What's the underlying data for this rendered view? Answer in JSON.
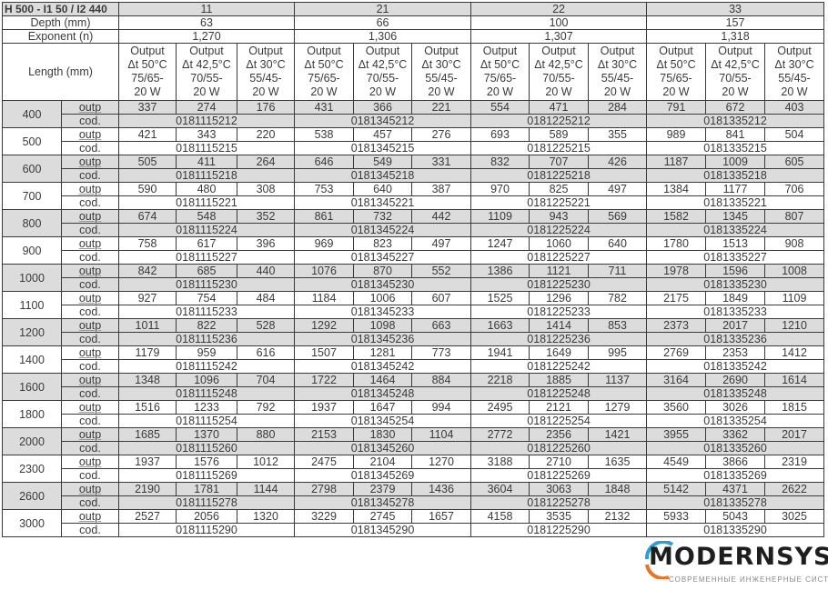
{
  "table": {
    "title": "H 500 - I1 50 / I2 440",
    "types": [
      "11",
      "21",
      "22",
      "33"
    ],
    "depth_label": "Depth (mm)",
    "depths": [
      "63",
      "66",
      "100",
      "157"
    ],
    "exponent_label": "Exponent (n)",
    "exponents": [
      "1,270",
      "1,306",
      "1,307",
      "1,318"
    ],
    "length_label": "Length (mm)",
    "output_headers": [
      [
        "Output",
        "Δt 50°C",
        "75/65-",
        "20 W"
      ],
      [
        "Output",
        "Δt 42,5°C",
        "70/55-",
        "20 W"
      ],
      [
        "Output",
        "Δt 30°C",
        "55/45-",
        "20 W"
      ]
    ],
    "outp_label": "outp",
    "cod_label": "cod.",
    "rows": [
      {
        "length": "400",
        "outp": [
          [
            "337",
            "274",
            "176"
          ],
          [
            "431",
            "366",
            "221"
          ],
          [
            "554",
            "471",
            "284"
          ],
          [
            "791",
            "672",
            "403"
          ]
        ],
        "cod": [
          "0181115212",
          "0181345212",
          "0181225212",
          "0181335212"
        ]
      },
      {
        "length": "500",
        "outp": [
          [
            "421",
            "343",
            "220"
          ],
          [
            "538",
            "457",
            "276"
          ],
          [
            "693",
            "589",
            "355"
          ],
          [
            "989",
            "841",
            "504"
          ]
        ],
        "cod": [
          "0181115215",
          "0181345215",
          "0181225215",
          "0181335215"
        ]
      },
      {
        "length": "600",
        "outp": [
          [
            "505",
            "411",
            "264"
          ],
          [
            "646",
            "549",
            "331"
          ],
          [
            "832",
            "707",
            "426"
          ],
          [
            "1187",
            "1009",
            "605"
          ]
        ],
        "cod": [
          "0181115218",
          "0181345218",
          "0181225218",
          "0181335218"
        ]
      },
      {
        "length": "700",
        "outp": [
          [
            "590",
            "480",
            "308"
          ],
          [
            "753",
            "640",
            "387"
          ],
          [
            "970",
            "825",
            "497"
          ],
          [
            "1384",
            "1177",
            "706"
          ]
        ],
        "cod": [
          "0181115221",
          "0181345221",
          "0181225221",
          "0181335221"
        ]
      },
      {
        "length": "800",
        "outp": [
          [
            "674",
            "548",
            "352"
          ],
          [
            "861",
            "732",
            "442"
          ],
          [
            "1109",
            "943",
            "569"
          ],
          [
            "1582",
            "1345",
            "807"
          ]
        ],
        "cod": [
          "0181115224",
          "0181345224",
          "0181225224",
          "0181335224"
        ]
      },
      {
        "length": "900",
        "outp": [
          [
            "758",
            "617",
            "396"
          ],
          [
            "969",
            "823",
            "497"
          ],
          [
            "1247",
            "1060",
            "640"
          ],
          [
            "1780",
            "1513",
            "908"
          ]
        ],
        "cod": [
          "0181115227",
          "0181345227",
          "0181225227",
          "0181335227"
        ]
      },
      {
        "length": "1000",
        "outp": [
          [
            "842",
            "685",
            "440"
          ],
          [
            "1076",
            "870",
            "552"
          ],
          [
            "1386",
            "1121",
            "711"
          ],
          [
            "1978",
            "1596",
            "1008"
          ]
        ],
        "cod": [
          "0181115230",
          "0181345230",
          "0181225230",
          "0181335230"
        ]
      },
      {
        "length": "1100",
        "outp": [
          [
            "927",
            "754",
            "484"
          ],
          [
            "1184",
            "1006",
            "607"
          ],
          [
            "1525",
            "1296",
            "782"
          ],
          [
            "2175",
            "1849",
            "1109"
          ]
        ],
        "cod": [
          "0181115233",
          "0181345233",
          "0181225233",
          "0181335233"
        ]
      },
      {
        "length": "1200",
        "outp": [
          [
            "1011",
            "822",
            "528"
          ],
          [
            "1292",
            "1098",
            "663"
          ],
          [
            "1663",
            "1414",
            "853"
          ],
          [
            "2373",
            "2017",
            "1210"
          ]
        ],
        "cod": [
          "0181115236",
          "0181345236",
          "0181225236",
          "0181335236"
        ]
      },
      {
        "length": "1400",
        "outp": [
          [
            "1179",
            "959",
            "616"
          ],
          [
            "1507",
            "1281",
            "773"
          ],
          [
            "1941",
            "1649",
            "995"
          ],
          [
            "2769",
            "2353",
            "1412"
          ]
        ],
        "cod": [
          "0181115242",
          "0181345242",
          "0181225242",
          "0181335242"
        ]
      },
      {
        "length": "1600",
        "outp": [
          [
            "1348",
            "1096",
            "704"
          ],
          [
            "1722",
            "1464",
            "884"
          ],
          [
            "2218",
            "1885",
            "1137"
          ],
          [
            "3164",
            "2690",
            "1614"
          ]
        ],
        "cod": [
          "0181115248",
          "0181345248",
          "0181225248",
          "0181335248"
        ]
      },
      {
        "length": "1800",
        "outp": [
          [
            "1516",
            "1233",
            "792"
          ],
          [
            "1937",
            "1647",
            "994"
          ],
          [
            "2495",
            "2121",
            "1279"
          ],
          [
            "3560",
            "3026",
            "1815"
          ]
        ],
        "cod": [
          "0181115254",
          "0181345254",
          "0181225254",
          "0181335254"
        ]
      },
      {
        "length": "2000",
        "outp": [
          [
            "1685",
            "1370",
            "880"
          ],
          [
            "2153",
            "1830",
            "1104"
          ],
          [
            "2772",
            "2356",
            "1421"
          ],
          [
            "3955",
            "3362",
            "2017"
          ]
        ],
        "cod": [
          "0181115260",
          "0181345260",
          "0181225260",
          "0181335260"
        ]
      },
      {
        "length": "2300",
        "outp": [
          [
            "1937",
            "1576",
            "1012"
          ],
          [
            "2475",
            "2104",
            "1270"
          ],
          [
            "3188",
            "2710",
            "1635"
          ],
          [
            "4549",
            "3866",
            "2319"
          ]
        ],
        "cod": [
          "0181115269",
          "0181345269",
          "0181225269",
          "0181335269"
        ]
      },
      {
        "length": "2600",
        "outp": [
          [
            "2190",
            "1781",
            "1144"
          ],
          [
            "2798",
            "2379",
            "1436"
          ],
          [
            "3604",
            "3063",
            "1848"
          ],
          [
            "5142",
            "4371",
            "2622"
          ]
        ],
        "cod": [
          "0181115278",
          "0181345278",
          "0181225278",
          "0181335278"
        ]
      },
      {
        "length": "3000",
        "outp": [
          [
            "2527",
            "2056",
            "1320"
          ],
          [
            "3229",
            "2745",
            "1657"
          ],
          [
            "4158",
            "3535",
            "2132"
          ],
          [
            "5933",
            "5043",
            "3025"
          ]
        ],
        "cod": [
          "0181115290",
          "0181345290",
          "0181225290",
          "0181335290"
        ]
      }
    ]
  },
  "logo": {
    "name": "MODERNSYS",
    "tagline": "СОВРЕМЕННЫЕ ИНЖЕНЕРНЫЕ СИСТЕМЫ",
    "accent": "#2a9fd8",
    "accent2": "#e8742a"
  }
}
